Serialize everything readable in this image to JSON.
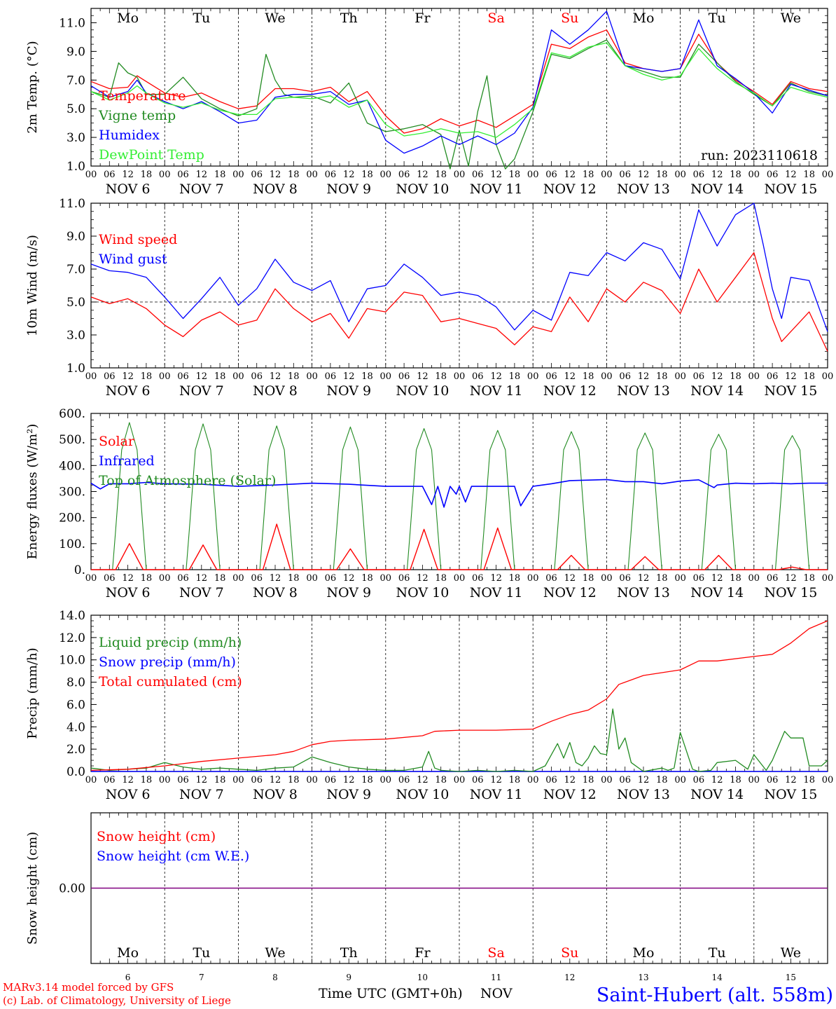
{
  "meta": {
    "credit_line1": "MARv3.14 model forced by GFS",
    "credit_line2": "(c) Lab. of Climatology, University of Liege",
    "xaxis_title": "Time UTC (GMT+0h)",
    "xaxis_unit": "NOV",
    "station": "Saint-Hubert (alt. 558m)",
    "run": "run: 2023110618"
  },
  "colors": {
    "red": "#ff0000",
    "darkgreen": "#228b22",
    "blue": "#0000ff",
    "lightgreen": "#33ee33",
    "purple": "#800080",
    "weekend": "#ff0000"
  },
  "days": {
    "weekday_names": [
      "Mo",
      "Tu",
      "We",
      "Th",
      "Fr",
      "Sa",
      "Su",
      "Mo",
      "Tu",
      "We"
    ],
    "weekend_flags": [
      false,
      false,
      false,
      false,
      false,
      true,
      true,
      false,
      false,
      false
    ],
    "date_labels": [
      "NOV  6",
      "NOV  7",
      "NOV  8",
      "NOV  9",
      "NOV 10",
      "NOV 11",
      "NOV 12",
      "NOV 13",
      "NOV 14",
      "NOV 15"
    ],
    "day_numbers": [
      "6",
      "7",
      "8",
      "9",
      "10",
      "11",
      "12",
      "13",
      "14",
      "15"
    ],
    "hour_labels": [
      "00",
      "06",
      "12",
      "18"
    ],
    "final_hour_label": "00"
  },
  "chart_data": [
    {
      "type": "line",
      "ylabel": "2m Temp. (°C)",
      "ylim": [
        1,
        12
      ],
      "yticks": [
        "1.0",
        "3.0",
        "5.0",
        "7.0",
        "9.0",
        "11.0"
      ],
      "x_unit": "hours since 2023-11-06 00 UTC",
      "legend": [
        "Temperature",
        "Vigne temp",
        "Humidex",
        "DewPoint Temp"
      ],
      "series": [
        {
          "name": "Temperature",
          "color": "red",
          "x": [
            0,
            6,
            12,
            15,
            18,
            24,
            30,
            36,
            42,
            48,
            54,
            60,
            66,
            72,
            78,
            84,
            90,
            96,
            102,
            108,
            114,
            120,
            126,
            132,
            138,
            144,
            150,
            156,
            162,
            168,
            174,
            180,
            186,
            192,
            198,
            204,
            210,
            216,
            222,
            228,
            234,
            240
          ],
          "y": [
            6.9,
            6.4,
            6.5,
            7.3,
            6.9,
            6.1,
            5.8,
            6.1,
            5.5,
            5.0,
            5.2,
            6.4,
            6.4,
            6.2,
            6.5,
            5.5,
            6.2,
            4.5,
            3.3,
            3.6,
            4.3,
            3.8,
            4.2,
            3.7,
            4.5,
            5.3,
            9.5,
            9.2,
            10.0,
            10.5,
            8.2,
            7.8,
            7.6,
            7.8,
            10.2,
            8.2,
            7.0,
            6.2,
            5.3,
            6.9,
            6.4,
            6.2
          ]
        },
        {
          "name": "Vigne temp",
          "color": "darkgreen",
          "x": [
            0,
            6,
            9,
            12,
            15,
            18,
            24,
            30,
            36,
            42,
            48,
            54,
            57,
            60,
            63,
            66,
            72,
            78,
            84,
            90,
            96,
            102,
            108,
            114,
            117,
            120,
            123,
            126,
            129,
            132,
            135,
            138,
            144,
            150,
            156,
            162,
            168,
            174,
            180,
            186,
            192,
            198,
            204,
            210,
            216,
            222,
            228,
            234,
            240
          ],
          "y": [
            6.2,
            5.8,
            8.2,
            7.5,
            7.2,
            6.0,
            6.0,
            7.2,
            5.7,
            5.0,
            4.5,
            5.0,
            8.8,
            7.0,
            6.0,
            5.8,
            5.9,
            5.4,
            6.8,
            4.0,
            3.4,
            3.6,
            3.9,
            3.2,
            0.8,
            3.5,
            1.0,
            4.8,
            7.3,
            2.5,
            0.8,
            1.5,
            4.8,
            8.8,
            8.5,
            9.2,
            9.8,
            8.0,
            7.6,
            7.2,
            7.2,
            9.5,
            8.2,
            6.9,
            6.0,
            5.2,
            6.8,
            6.2,
            5.9
          ]
        },
        {
          "name": "Humidex",
          "color": "blue",
          "x": [
            0,
            6,
            12,
            15,
            18,
            24,
            30,
            36,
            42,
            48,
            54,
            60,
            66,
            72,
            78,
            84,
            90,
            96,
            102,
            108,
            114,
            120,
            126,
            132,
            138,
            144,
            150,
            156,
            162,
            168,
            174,
            180,
            186,
            192,
            198,
            204,
            210,
            216,
            222,
            228,
            234,
            240
          ],
          "y": [
            6.6,
            5.8,
            6.2,
            7.0,
            6.1,
            5.5,
            5.0,
            5.5,
            4.8,
            4.0,
            4.2,
            5.8,
            6.0,
            6.0,
            6.2,
            5.3,
            5.6,
            2.8,
            1.9,
            2.4,
            3.1,
            2.5,
            3.1,
            2.5,
            3.3,
            5.1,
            10.5,
            9.5,
            10.5,
            11.8,
            8.0,
            7.8,
            7.6,
            7.8,
            11.2,
            8.0,
            7.1,
            6.1,
            4.7,
            6.7,
            6.3,
            5.9
          ]
        },
        {
          "name": "DewPoint Temp",
          "color": "lightgreen",
          "x": [
            0,
            6,
            12,
            15,
            18,
            24,
            30,
            36,
            42,
            48,
            54,
            60,
            66,
            72,
            78,
            84,
            90,
            96,
            102,
            108,
            114,
            120,
            126,
            132,
            138,
            144,
            150,
            156,
            162,
            168,
            174,
            180,
            186,
            192,
            198,
            204,
            210,
            216,
            222,
            228,
            234,
            240
          ],
          "y": [
            6.2,
            5.6,
            6.1,
            6.6,
            6.1,
            5.4,
            5.1,
            5.4,
            4.9,
            4.6,
            4.6,
            5.7,
            5.8,
            5.7,
            5.9,
            5.1,
            5.6,
            3.9,
            3.1,
            3.3,
            3.6,
            3.3,
            3.4,
            3.0,
            3.9,
            5.0,
            8.9,
            8.6,
            9.3,
            9.6,
            8.0,
            7.4,
            7.0,
            7.3,
            9.2,
            7.8,
            6.8,
            6.1,
            5.2,
            6.5,
            6.1,
            5.8
          ]
        }
      ]
    },
    {
      "type": "line",
      "ylabel": "10m Wind (m/s)",
      "ylim": [
        1,
        11
      ],
      "yticks": [
        "1.0",
        "3.0",
        "5.0",
        "7.0",
        "9.0",
        "11.0"
      ],
      "x_unit": "hours since 2023-11-06 00 UTC",
      "legend": [
        "Wind speed",
        "Wind gust"
      ],
      "reference_line": 5.0,
      "series": [
        {
          "name": "Wind speed",
          "color": "red",
          "x": [
            0,
            6,
            12,
            18,
            24,
            30,
            36,
            42,
            48,
            54,
            60,
            66,
            72,
            78,
            84,
            90,
            96,
            102,
            108,
            114,
            120,
            126,
            132,
            138,
            144,
            150,
            156,
            162,
            168,
            174,
            180,
            186,
            192,
            198,
            204,
            210,
            216,
            219,
            222,
            225,
            228,
            234,
            240
          ],
          "y": [
            5.3,
            4.9,
            5.2,
            4.6,
            3.6,
            2.9,
            3.9,
            4.4,
            3.6,
            3.9,
            5.8,
            4.6,
            3.8,
            4.3,
            2.8,
            4.6,
            4.4,
            5.6,
            5.4,
            3.8,
            4.0,
            3.7,
            3.4,
            2.4,
            3.5,
            3.2,
            5.3,
            3.8,
            5.8,
            5.0,
            6.2,
            5.7,
            4.3,
            7.0,
            5.0,
            6.5,
            8.0,
            6.0,
            4.0,
            2.6,
            3.2,
            4.4,
            2.0
          ]
        },
        {
          "name": "Wind gust",
          "color": "blue",
          "x": [
            0,
            6,
            12,
            18,
            24,
            30,
            36,
            42,
            48,
            54,
            60,
            66,
            72,
            78,
            84,
            90,
            96,
            102,
            108,
            114,
            120,
            126,
            132,
            138,
            144,
            150,
            156,
            162,
            168,
            174,
            180,
            186,
            192,
            198,
            204,
            210,
            216,
            219,
            222,
            225,
            228,
            234,
            240
          ],
          "y": [
            7.3,
            6.9,
            6.8,
            6.5,
            5.3,
            4.0,
            5.2,
            6.5,
            4.8,
            5.8,
            7.6,
            6.2,
            5.7,
            6.3,
            3.8,
            5.8,
            6.0,
            7.3,
            6.5,
            5.4,
            5.6,
            5.4,
            4.7,
            3.3,
            4.5,
            3.9,
            6.8,
            6.6,
            8.0,
            7.5,
            8.6,
            8.2,
            6.4,
            10.6,
            8.4,
            10.3,
            11.0,
            8.5,
            5.8,
            4.0,
            6.5,
            6.3,
            3.2
          ]
        }
      ]
    },
    {
      "type": "line",
      "ylabel": "Energy fluxes (W/m²)",
      "ylim": [
        0,
        600
      ],
      "yticks": [
        "0.",
        "100.",
        "200.",
        "300.",
        "400.",
        "500.",
        "600."
      ],
      "x_unit": "hours since 2023-11-06 00 UTC",
      "legend": [
        "Solar",
        "Infrared",
        "Top of Atmosphere (Solar)"
      ],
      "toa_peaks": [
        565,
        560,
        552,
        548,
        542,
        535,
        530,
        525,
        520,
        515
      ],
      "solar_peaks": [
        100,
        95,
        175,
        80,
        155,
        160,
        55,
        50,
        55,
        10
      ],
      "series": [
        {
          "name": "Infrared",
          "color": "blue",
          "x": [
            0,
            3,
            6,
            12,
            18,
            24,
            36,
            48,
            60,
            72,
            84,
            96,
            108,
            111,
            113,
            115,
            117,
            119,
            120,
            122,
            124,
            126,
            128,
            132,
            138,
            140,
            144,
            150,
            156,
            168,
            174,
            180,
            186,
            192,
            198,
            203,
            204,
            210,
            216,
            222,
            228,
            234,
            240
          ],
          "y": [
            332,
            310,
            330,
            330,
            335,
            330,
            328,
            320,
            325,
            332,
            328,
            320,
            320,
            250,
            320,
            240,
            320,
            290,
            320,
            260,
            320,
            320,
            320,
            320,
            320,
            245,
            320,
            330,
            342,
            346,
            338,
            338,
            330,
            340,
            345,
            315,
            325,
            332,
            330,
            332,
            330,
            332,
            332
          ]
        }
      ]
    },
    {
      "type": "line",
      "ylabel": "Precip (mm/h)",
      "ylim": [
        0,
        14
      ],
      "yticks": [
        "0.0",
        "2.0",
        "4.0",
        "6.0",
        "8.0",
        "10.0",
        "12.0",
        "14.0"
      ],
      "x_unit": "hours since 2023-11-06 00 UTC",
      "legend": [
        "Liquid precip (mm/h)",
        "Snow precip (mm/h)",
        "Total cumulated (cm)"
      ],
      "series": [
        {
          "name": "Liquid precip (mm/h)",
          "color": "darkgreen",
          "x": [
            0,
            6,
            12,
            18,
            24,
            30,
            36,
            42,
            48,
            54,
            60,
            66,
            72,
            78,
            84,
            90,
            96,
            102,
            108,
            110,
            112,
            114,
            120,
            126,
            132,
            138,
            144,
            148,
            150,
            152,
            154,
            156,
            158,
            160,
            162,
            164,
            166,
            168,
            170,
            172,
            174,
            176,
            180,
            186,
            188,
            190,
            192,
            196,
            198,
            202,
            204,
            210,
            214,
            216,
            220,
            222,
            226,
            228,
            232,
            234,
            238,
            240
          ],
          "y": [
            0.3,
            0.1,
            0.2,
            0.3,
            0.8,
            0.4,
            0.2,
            0.3,
            0.2,
            0.1,
            0.3,
            0.4,
            1.3,
            0.8,
            0.4,
            0.2,
            0.1,
            0.1,
            0.4,
            1.8,
            0.3,
            0.1,
            0.0,
            0.1,
            0.0,
            0.1,
            0.0,
            0.5,
            1.5,
            2.5,
            1.2,
            2.6,
            0.8,
            0.5,
            1.2,
            2.3,
            1.6,
            1.5,
            5.6,
            2.0,
            3.0,
            0.8,
            0.0,
            0.3,
            0.1,
            0.3,
            3.5,
            0.2,
            0.0,
            0.1,
            0.8,
            1.0,
            0.2,
            1.5,
            0.1,
            1.0,
            3.6,
            3.0,
            3.0,
            0.5,
            0.5,
            1.0
          ]
        },
        {
          "name": "Total cumulated (cm)",
          "color": "red",
          "x": [
            0,
            12,
            24,
            36,
            48,
            60,
            66,
            72,
            78,
            84,
            96,
            108,
            112,
            120,
            132,
            144,
            150,
            156,
            162,
            168,
            172,
            180,
            192,
            198,
            204,
            216,
            222,
            228,
            234,
            240
          ],
          "y": [
            0.1,
            0.2,
            0.5,
            0.9,
            1.2,
            1.5,
            1.8,
            2.4,
            2.7,
            2.8,
            2.9,
            3.2,
            3.6,
            3.7,
            3.7,
            3.8,
            4.5,
            5.1,
            5.5,
            6.5,
            7.8,
            8.6,
            9.1,
            9.9,
            9.9,
            10.3,
            10.5,
            11.5,
            12.8,
            13.5
          ]
        }
      ]
    },
    {
      "type": "line",
      "ylabel": "Snow height (cm)",
      "yticks": [
        "0.00"
      ],
      "x_unit": "hours since 2023-11-06 00 UTC",
      "legend": [
        "Snow height (cm)",
        "Snow height (cm W.E.)"
      ],
      "series": [
        {
          "name": "Snow height (cm)",
          "color": "purple",
          "x": [
            0,
            240
          ],
          "y": [
            0,
            0
          ]
        }
      ]
    }
  ]
}
